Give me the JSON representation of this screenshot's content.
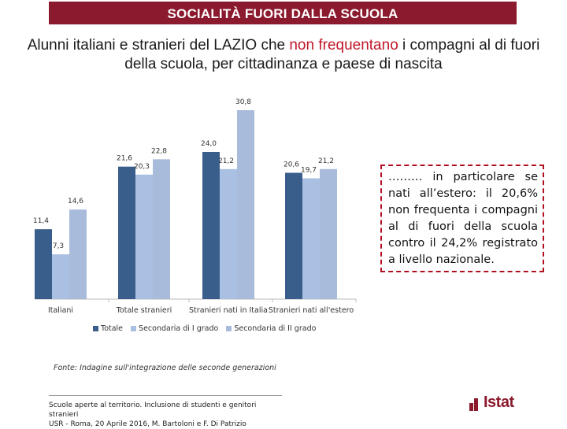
{
  "banner": {
    "title": "SOCIALITÀ FUORI DALLA SCUOLA"
  },
  "heading": {
    "part1": "Alunni italiani e stranieri del LAZIO che ",
    "highlight": "non frequentano",
    "part2": " i compagni al di fuori della scuola, per cittadinanza e paese di nascita"
  },
  "callout": {
    "text": "……… in particolare se nati all’estero: il 20,6% non frequenta i compagni al di fuori della scuola contro il 24,2% registrato a livello nazionale."
  },
  "source": "Fonte: Indagine sull'integrazione delle seconde generazioni",
  "footer": {
    "line1": "Scuole aperte al territorio. Inclusione di studenti e genitori stranieri",
    "line2": "USR - Roma, 20 Aprile 2016, M. Bartoloni e F. Di Patrizio"
  },
  "logo": {
    "text": "Istat"
  },
  "colors": {
    "banner": "#8b1a2e",
    "totale": "#3a5e8c",
    "primo": "#a9c0e2",
    "secondo": "#a9bbdb"
  },
  "chart_data": {
    "type": "bar",
    "title": "",
    "categories": [
      "Italiani",
      "Totale stranieri",
      "Stranieri nati in Italia",
      "Stranieri nati all'estero"
    ],
    "series": [
      {
        "name": "Totale",
        "values": [
          11.4,
          21.6,
          24.0,
          20.6
        ],
        "labels": [
          "11,4",
          "21,6",
          "24,0",
          "20,6"
        ]
      },
      {
        "name": "Secondaria di I grado",
        "values": [
          7.3,
          20.3,
          21.2,
          19.7
        ],
        "labels": [
          "7,3",
          "20,3",
          "21,2",
          "19,7"
        ]
      },
      {
        "name": "Secondaria di II grado",
        "values": [
          14.6,
          22.8,
          30.8,
          21.2
        ],
        "labels": [
          "14,6",
          "22,8",
          "30,8",
          "21,2"
        ]
      }
    ],
    "xlabel": "",
    "ylabel": "",
    "ylim": [
      0,
      32
    ],
    "legend": "bottom"
  }
}
